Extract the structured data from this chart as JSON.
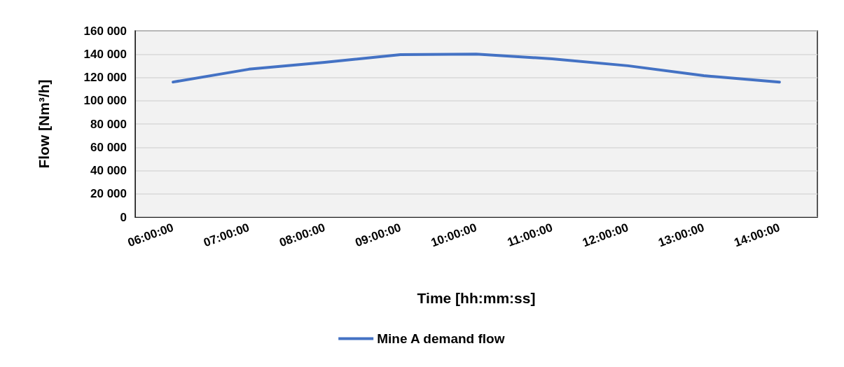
{
  "chart_data": {
    "type": "line",
    "xlabel": "Time [hh:mm:ss]",
    "ylabel": "Flow [Nm³/h]",
    "categories": [
      "06:00:00",
      "07:00:00",
      "08:00:00",
      "09:00:00",
      "10:00:00",
      "11:00:00",
      "12:00:00",
      "13:00:00",
      "14:00:00"
    ],
    "series": [
      {
        "name": "Mine A demand flow",
        "color": "#4472c4",
        "values": [
          116000,
          127000,
          133000,
          139500,
          140000,
          136000,
          130000,
          121500,
          116000
        ]
      }
    ],
    "ylim": [
      0,
      160000
    ],
    "yticks": [
      0,
      {
        "value": 20000,
        "label": "20 000"
      },
      {
        "value": 40000,
        "label": "40 000"
      },
      {
        "value": 60000,
        "label": "60 000"
      },
      {
        "value": 80000,
        "label": "80 000"
      },
      {
        "value": 100000,
        "label": "100 000"
      },
      {
        "value": 120000,
        "label": "120 000"
      },
      {
        "value": 140000,
        "label": "140 000"
      },
      {
        "value": 160000,
        "label": "160 000"
      }
    ],
    "grid": "y",
    "legend": "bottom",
    "marker": "none",
    "line_style": "solid"
  }
}
